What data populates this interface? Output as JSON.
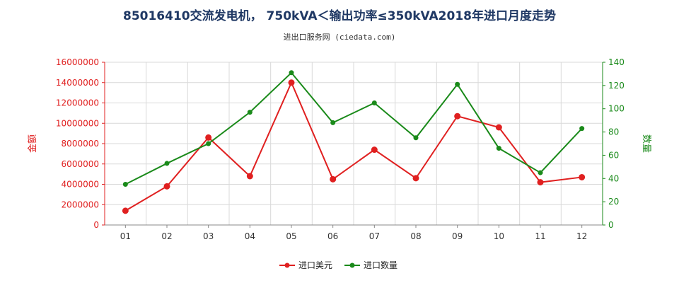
{
  "chart_data": {
    "type": "line",
    "title": "85016410交流发电机， 750kVA＜输出功率≤350kVA2018年进口月度走势",
    "subtitle": "进出口服务网 (ciedata.com)",
    "categories": [
      "01",
      "02",
      "03",
      "04",
      "05",
      "06",
      "07",
      "08",
      "09",
      "10",
      "11",
      "12"
    ],
    "y_left": {
      "label": "金额",
      "ylim": [
        0,
        16000000
      ],
      "ticks": [
        "0",
        "2000000",
        "4000000",
        "6000000",
        "8000000",
        "10000000",
        "12000000",
        "14000000",
        "16000000"
      ],
      "color": "#e02020"
    },
    "y_right": {
      "label": "数量",
      "ylim": [
        0,
        140
      ],
      "ticks": [
        "0",
        "20",
        "40",
        "60",
        "80",
        "100",
        "120",
        "140"
      ],
      "color": "#1a8a1a"
    },
    "series": [
      {
        "name": "进口美元",
        "axis": "left",
        "color": "#e02020",
        "values": [
          1400000,
          3800000,
          8600000,
          4800000,
          14000000,
          4500000,
          7400000,
          4600000,
          10700000,
          9600000,
          4200000,
          4700000
        ]
      },
      {
        "name": "进口数量",
        "axis": "right",
        "color": "#1a8a1a",
        "values": [
          35,
          53,
          70,
          97,
          131,
          88,
          105,
          75,
          121,
          66,
          45,
          83
        ]
      }
    ],
    "grid": true,
    "legend": "bottom-center"
  }
}
